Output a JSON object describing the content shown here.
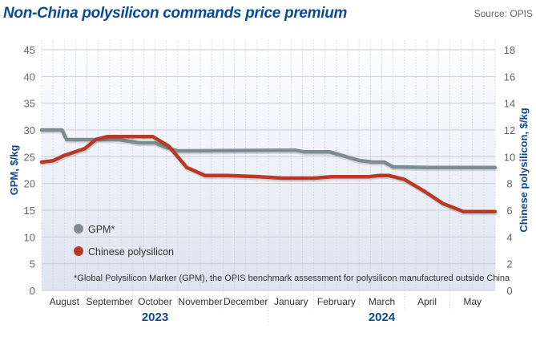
{
  "header": {
    "title": "Non-China polysilicon commands price premium",
    "source": "Source: OPIS"
  },
  "chart_data": {
    "type": "line",
    "title": "Non-China polysilicon commands price premium",
    "source": "Source: OPIS",
    "ylabel": "GPM, $/kg",
    "y2label": "Chinese polysilicon, $/kg",
    "ylim": [
      0,
      45
    ],
    "y2lim": [
      0,
      18
    ],
    "yticks": [
      "0",
      "5",
      "10",
      "15",
      "20",
      "25",
      "30",
      "35",
      "40",
      "45"
    ],
    "y2ticks": [
      "0",
      "2",
      "4",
      "6",
      "8",
      "10",
      "12",
      "14",
      "16",
      "18"
    ],
    "xlim": [
      0,
      10
    ],
    "month_labels": [
      {
        "label": "August",
        "x": 0.5
      },
      {
        "label": "September",
        "x": 1.5
      },
      {
        "label": "October",
        "x": 2.5
      },
      {
        "label": "November",
        "x": 3.5
      },
      {
        "label": "December",
        "x": 4.5
      },
      {
        "label": "January",
        "x": 5.5
      },
      {
        "label": "February",
        "x": 6.5
      },
      {
        "label": "March",
        "x": 7.5
      },
      {
        "label": "April",
        "x": 8.5
      },
      {
        "label": "May",
        "x": 9.5
      }
    ],
    "year_labels": [
      {
        "label": "2023",
        "x": 2.5
      },
      {
        "label": "2024",
        "x": 7.5
      }
    ],
    "year_divider_x": 5,
    "grid": true,
    "legend_position": "bottom-left",
    "legend": [
      "GPM*",
      "Chinese polysilicon"
    ],
    "footnote": "*Global Polysilicon Marker (GPM), the OPIS benchmark assessment for polysilicon manufactured outside China",
    "series": [
      {
        "name": "GPM*",
        "axis": "left",
        "color": "#7f8b93",
        "x": [
          0,
          0.45,
          0.55,
          1.7,
          2.15,
          2.5,
          2.75,
          3.0,
          3.35,
          5.6,
          5.8,
          6.35,
          6.6,
          7.0,
          7.3,
          7.55,
          7.75,
          8.5,
          10.0
        ],
        "values": [
          30.0,
          30.0,
          28.2,
          28.2,
          27.6,
          27.6,
          26.7,
          26.1,
          26.1,
          26.2,
          25.9,
          25.9,
          25.3,
          24.3,
          24.0,
          24.0,
          23.1,
          23.0,
          23.0
        ]
      },
      {
        "name": "Chinese polysilicon",
        "axis": "right",
        "color": "#b83a23",
        "x": [
          0,
          0.25,
          0.5,
          0.95,
          1.2,
          1.45,
          1.65,
          2.45,
          2.8,
          3.2,
          3.6,
          4.1,
          4.8,
          5.3,
          6.0,
          6.4,
          7.2,
          7.45,
          7.65,
          8.0,
          8.45,
          8.85,
          9.3,
          9.55,
          10.0
        ],
        "values": [
          9.6,
          9.7,
          10.1,
          10.6,
          11.3,
          11.5,
          11.5,
          11.5,
          10.8,
          9.2,
          8.6,
          8.6,
          8.5,
          8.4,
          8.4,
          8.5,
          8.5,
          8.6,
          8.6,
          8.3,
          7.4,
          6.5,
          5.9,
          5.9,
          5.9
        ]
      }
    ]
  }
}
